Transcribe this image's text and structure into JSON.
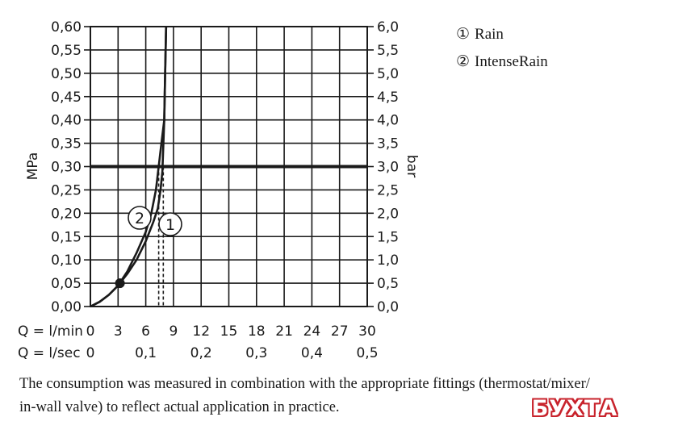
{
  "chart_data": {
    "type": "line",
    "y_left": {
      "label": "MPa",
      "range": [
        0,
        0.6
      ],
      "ticks": [
        "0,00",
        "0,05",
        "0,10",
        "0,15",
        "0,20",
        "0,25",
        "0,30",
        "0,35",
        "0,40",
        "0,45",
        "0,50",
        "0,55",
        "0,60"
      ]
    },
    "y_right": {
      "label": "bar",
      "range": [
        0,
        6
      ],
      "ticks": [
        "0,0",
        "0,5",
        "1,0",
        "1,5",
        "2,0",
        "2,5",
        "3,0",
        "3,5",
        "4,0",
        "4,5",
        "5,0",
        "5,5",
        "6,0"
      ]
    },
    "x_lmin": {
      "label": "Q = l/min",
      "range": [
        0,
        30
      ],
      "ticks": [
        "0",
        "3",
        "6",
        "9",
        "12",
        "15",
        "18",
        "21",
        "24",
        "27",
        "30"
      ]
    },
    "x_lsec": {
      "label": "Q = l/sec",
      "ticks": [
        {
          "value": 0,
          "text": "0"
        },
        {
          "value": 6,
          "text": "0,1"
        },
        {
          "value": 12,
          "text": "0,2"
        },
        {
          "value": 18,
          "text": "0,3"
        },
        {
          "value": 24,
          "text": "0,4"
        },
        {
          "value": 30,
          "text": "0,5"
        }
      ]
    },
    "reference_line": {
      "y": 0.3
    },
    "marker_point": {
      "x": 3.2,
      "y": 0.05
    },
    "series": [
      {
        "name": "Rain",
        "marker": "1",
        "points": [
          [
            0,
            0
          ],
          [
            1,
            0.01
          ],
          [
            2,
            0.025
          ],
          [
            3,
            0.045
          ],
          [
            4,
            0.07
          ],
          [
            5,
            0.1
          ],
          [
            6,
            0.14
          ],
          [
            6.8,
            0.18
          ],
          [
            7.3,
            0.21
          ],
          [
            7.6,
            0.25
          ],
          [
            7.8,
            0.29
          ],
          [
            8,
            0.4
          ],
          [
            8.1,
            0.5
          ],
          [
            8.2,
            0.6
          ]
        ],
        "flow_at_reference": 7.9
      },
      {
        "name": "IntenseRain",
        "marker": "2",
        "points": [
          [
            0,
            0
          ],
          [
            1,
            0.01
          ],
          [
            2,
            0.025
          ],
          [
            3,
            0.045
          ],
          [
            4,
            0.075
          ],
          [
            5,
            0.115
          ],
          [
            6,
            0.16
          ],
          [
            6.6,
            0.2
          ],
          [
            7.1,
            0.25
          ],
          [
            7.4,
            0.3
          ],
          [
            7.7,
            0.35
          ],
          [
            8,
            0.4
          ],
          [
            8.1,
            0.5
          ],
          [
            8.2,
            0.6
          ]
        ],
        "flow_at_reference": 7.4
      }
    ]
  },
  "legend": [
    {
      "symbol": "①",
      "label": "Rain"
    },
    {
      "symbol": "②",
      "label": "IntenseRain"
    }
  ],
  "caption": {
    "line1": "The consumption was measured in combination with the appropriate fittings (thermostat/mixer/",
    "line2": "in-wall valve) to reflect actual application in practice."
  },
  "logo": {
    "text": "БУХТА",
    "color": "#c8232c"
  }
}
